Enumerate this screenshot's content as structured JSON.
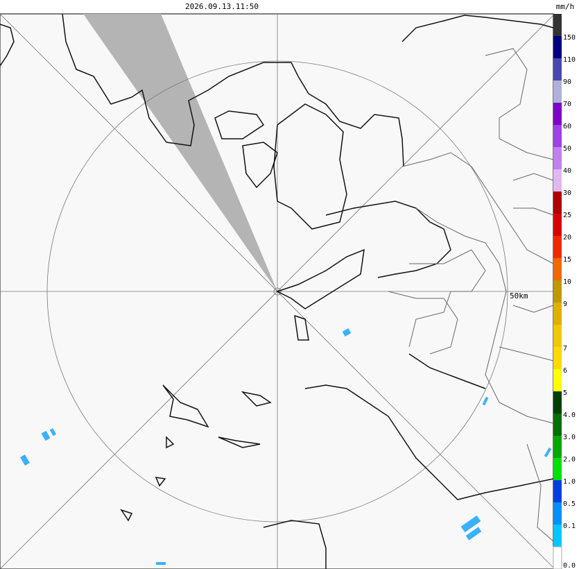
{
  "header": {
    "timestamp": "2026.09.13.11:50"
  },
  "map": {
    "range_label": "50km"
  },
  "legend": {
    "unit": "mm/h",
    "labels": [
      "150",
      "110",
      "90",
      "70",
      "60",
      "50",
      "40",
      "30",
      "25",
      "20",
      "15",
      "10",
      "9",
      null,
      "7",
      "6",
      "5",
      "4.0",
      "3.0",
      "2.0",
      "1.0",
      "0.5",
      "0.1"
    ],
    "bottom_label": "0.0",
    "colors": [
      "#333333",
      "#000080",
      "#4848b0",
      "#b0b0dc",
      "#8000c8",
      "#a040e8",
      "#c080f0",
      "#e0b8f0",
      "#b00000",
      "#d80000",
      "#f02800",
      "#f06800",
      "#c09800",
      "#e0b000",
      "#f0c800",
      "#ffd800",
      "#ffff00",
      "#004000",
      "#007000",
      "#00a800",
      "#00e000",
      "#0040e0",
      "#0090ff",
      "#00c8ff",
      "#ffffff"
    ]
  }
}
